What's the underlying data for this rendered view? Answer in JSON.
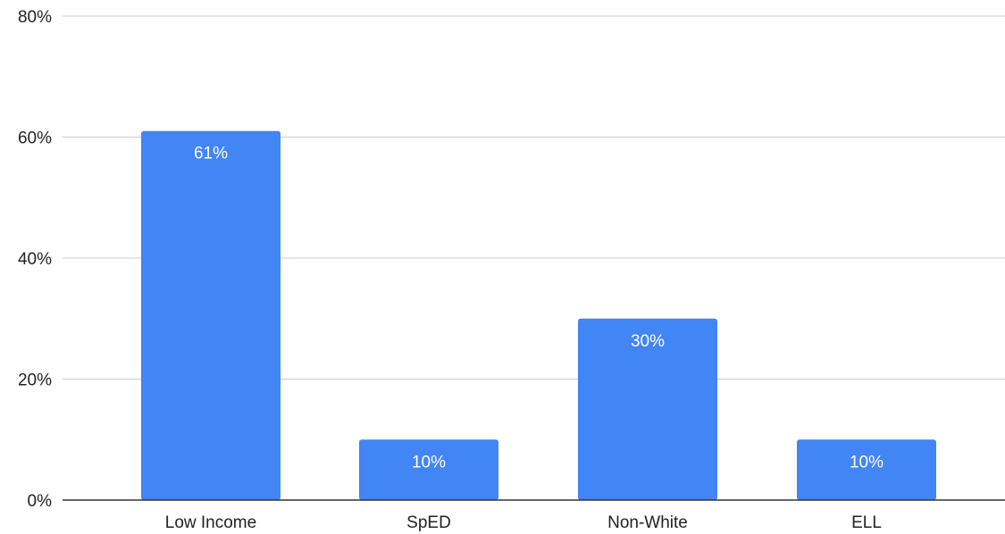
{
  "chart_data": {
    "type": "bar",
    "categories": [
      "Low Income",
      "SpED",
      "Non-White",
      "ELL"
    ],
    "values": [
      61,
      10,
      30,
      10
    ],
    "data_labels": [
      "61%",
      "10%",
      "30%",
      "10%"
    ],
    "y_ticks": [
      0,
      20,
      40,
      60,
      80
    ],
    "y_tick_labels": [
      "0%",
      "20%",
      "40%",
      "60%",
      "80%"
    ],
    "ylim": [
      0,
      80
    ],
    "grid": true,
    "legend": "none",
    "bar_color": "#4285f4"
  }
}
